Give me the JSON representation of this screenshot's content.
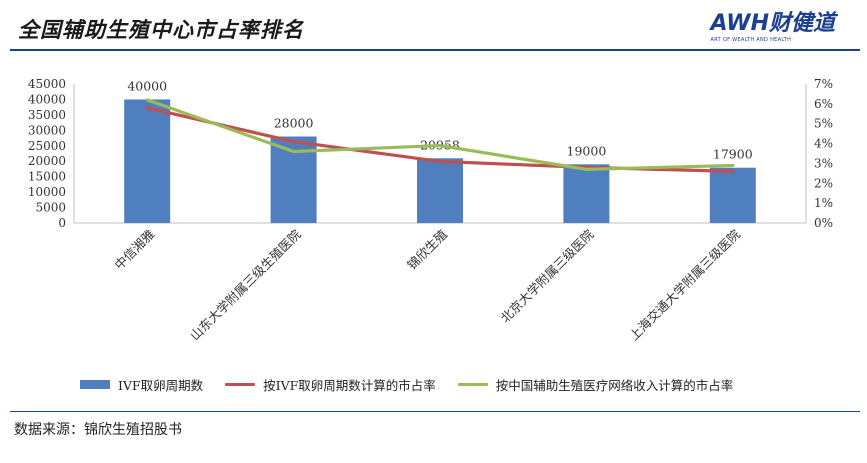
{
  "header": {
    "title": "全国辅助生殖中心市占率排名",
    "logo_text": "AWH财健道",
    "logo_subtext": "ART OF WEALTH AND HEALTH"
  },
  "footer": {
    "source": "数据来源：锦欣生殖招股书"
  },
  "colors": {
    "bar": "#4f7fbf",
    "line1": "#c0504d",
    "line2": "#9bbb59",
    "brand": "#1c3f8f"
  },
  "chart_data": {
    "type": "bar",
    "categories": [
      "中信湘雅",
      "山东大学附属三级生殖医院",
      "锦欣生殖",
      "北京大学附属三级医院",
      "上海交通大学附属三级医院"
    ],
    "series": [
      {
        "name": "IVF取卵周期数",
        "type": "bar",
        "axis": "left",
        "values": [
          40000,
          28000,
          20958,
          19000,
          17900
        ]
      },
      {
        "name": "按IVF取卵周期数计算的市占率",
        "type": "line",
        "axis": "right",
        "values": [
          5.8,
          4.1,
          3.1,
          2.8,
          2.6
        ]
      },
      {
        "name": "按中国辅助生殖医疗网络收入计算的市占率",
        "type": "line",
        "axis": "right",
        "values": [
          6.2,
          3.6,
          3.9,
          2.7,
          2.9
        ]
      }
    ],
    "data_labels": [
      "40000",
      "28000",
      "20958",
      "19000",
      "17900"
    ],
    "y_left": {
      "min": 0,
      "max": 45000,
      "step": 5000,
      "ticks": [
        "0",
        "5000",
        "10000",
        "15000",
        "20000",
        "25000",
        "30000",
        "35000",
        "40000",
        "45000"
      ]
    },
    "y_right": {
      "min": 0,
      "max": 7,
      "step": 1,
      "ticks": [
        "0%",
        "1%",
        "2%",
        "3%",
        "4%",
        "5%",
        "6%",
        "7%"
      ]
    },
    "legend_position": "bottom",
    "grid": false
  }
}
